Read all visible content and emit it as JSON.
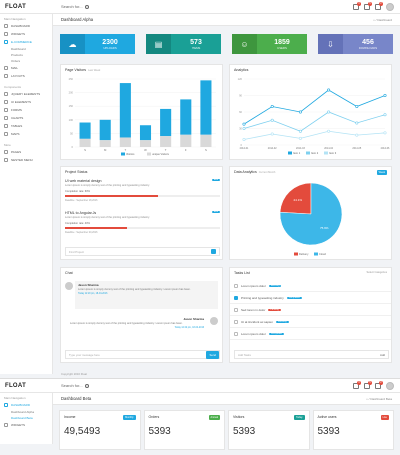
{
  "app": {
    "logo": "FLOAT",
    "search_placeholder": "Search for...",
    "user_initial": ""
  },
  "notifications": [
    {
      "name": "mail-icon",
      "count": "3"
    },
    {
      "name": "bell-icon",
      "count": "5"
    },
    {
      "name": "flag-icon",
      "count": "2"
    }
  ],
  "sidebar": {
    "heading_main": "Main Navigation",
    "items": [
      {
        "label": "DASHBOARD",
        "icon": "home-icon"
      },
      {
        "label": "WIDGETS",
        "icon": "widget-icon"
      },
      {
        "label": "E-COMMERCE",
        "icon": "cart-icon",
        "active": true
      },
      {
        "label": "MAIL",
        "icon": "mail-icon"
      },
      {
        "label": "LAYOUTS",
        "icon": "layout-icon"
      }
    ],
    "subitems": [
      "Dashboard",
      "Products",
      "Orders"
    ],
    "heading_components": "Components",
    "components": [
      {
        "label": "JQUERY ELEMENTS",
        "icon": "jquery-icon"
      },
      {
        "label": "UI ELEMENTS",
        "icon": "ui-icon"
      },
      {
        "label": "FORMS",
        "icon": "form-icon"
      },
      {
        "label": "CHARTS",
        "icon": "chart-icon"
      },
      {
        "label": "TABLES",
        "icon": "table-icon"
      },
      {
        "label": "MAPS",
        "icon": "map-icon"
      }
    ],
    "heading_more": "More",
    "more": [
      {
        "label": "PAGES",
        "icon": "pages-icon"
      },
      {
        "label": "NESTED MENU",
        "icon": "nested-icon"
      }
    ]
  },
  "header": {
    "title": "Dashboard Alpha",
    "breadcrumb": "Dashboard"
  },
  "stats": [
    {
      "value": "2300",
      "label": "Uploads",
      "color": "#1fa8e0",
      "icon": "cloud-icon"
    },
    {
      "value": "573",
      "label": "Items",
      "color": "#1aa096",
      "icon": "clipboard-icon"
    },
    {
      "value": "1859",
      "label": "Users",
      "color": "#4cae4c",
      "icon": "user-icon"
    },
    {
      "value": "456",
      "label": "Downloads",
      "color": "#7886c9",
      "icon": "download-icon"
    }
  ],
  "page_visitors": {
    "title": "Page Visitors",
    "subtitle": "Last Week"
  },
  "analytics": {
    "title": "Analytics"
  },
  "project_status": {
    "title": "Project Status",
    "projects": [
      {
        "name": "UI web material design",
        "desc": "Lorem ipsum is simply dummy text of the printing and typesetting industry.",
        "progress_label": "Completion rate: 60%",
        "progress": 0.6,
        "deadline": "Deadline : September 18,2016",
        "tag": "Edit"
      },
      {
        "name": "HTML to Angular.Js",
        "desc": "Lorem ipsum is simply dummy text of the printing and typesetting industry.",
        "progress_label": "Completion rate: 40%",
        "progress": 0.4,
        "deadline": "Deadline : September 20,2016",
        "tag": "Edit"
      }
    ],
    "search_placeholder": "Find Project"
  },
  "data_analytics": {
    "title": "Data Analytics",
    "subtitle": "Current Month",
    "pill": "Week"
  },
  "chat": {
    "title": "Chat",
    "messages": [
      {
        "name": "Jason Sharma",
        "text": "Lorem ipsum is simply dummy text of the printing and typesetting industry. Lorem ipsum has been.",
        "time": "Today 12:20 pm, 18-04-2016",
        "side": "left"
      },
      {
        "name": "Jason Sharma",
        "text": "Lorem ipsum is simply dummy text of the printing and typesetting industry. Lorem ipsum has been.",
        "time": "Today 12:22 pm, 18-04-2016",
        "side": "right"
      }
    ],
    "input_placeholder": "Type your message here",
    "send_label": "Send"
  },
  "tasks": {
    "title": "Tasks List",
    "list_label": "Select Categories",
    "items": [
      {
        "text": "Lorem ipsum dolor",
        "tag": "Running",
        "tag_color": "#1fa8e0",
        "done": false
      },
      {
        "text": "Printing and typesetting industry",
        "tag": "Completed",
        "tag_color": "#1fa8e0",
        "done": true
      },
      {
        "text": "Sed lorem in dolor",
        "tag": "Pending",
        "tag_color": "#e34b3c",
        "done": false
      },
      {
        "text": "Ut at tincidunt ac sapien",
        "tag": "Running",
        "tag_color": "#1fa8e0",
        "done": false
      },
      {
        "text": "Lorem ipsum dolor",
        "tag": "Completed",
        "tag_color": "#1fa8e0",
        "done": false
      }
    ],
    "add_placeholder": "Add Tasks",
    "add_label": "Add"
  },
  "footer": {
    "text": "Copyright 2016 Float"
  },
  "second": {
    "logo": "FLOAT",
    "search_placeholder": "Search for...",
    "header_title": "Dashboard Beta",
    "breadcrumb": "Dashboard Beta",
    "sidebar_heading": "Main Navigation",
    "sidebar_items": [
      {
        "label": "DASHBOARD",
        "icon": "home-icon",
        "active": true
      }
    ],
    "sidebar_sub": [
      "Dashboard Alpha",
      "Dashboard Beta"
    ],
    "sidebar_more": [
      {
        "label": "WIDGETS",
        "icon": "widget-icon"
      }
    ],
    "cards": [
      {
        "name": "Income",
        "badge": "Monthly",
        "badge_color": "#1fa8e0",
        "value": "49,5493"
      },
      {
        "name": "Orders",
        "badge": "Annual",
        "badge_color": "#4cae4c",
        "value": "5393"
      },
      {
        "name": "Visitors",
        "badge": "Today",
        "badge_color": "#1aa096",
        "value": "5393"
      },
      {
        "name": "Active users",
        "badge": "Live",
        "badge_color": "#e34b3c",
        "value": "5393"
      }
    ]
  },
  "chart_data": [
    {
      "type": "bar",
      "title": "Page Visitors",
      "categories": [
        "S",
        "M",
        "T",
        "W",
        "T",
        "F",
        "S"
      ],
      "series": [
        {
          "name": "Visitors",
          "values": [
            60,
            75,
            200,
            55,
            100,
            130,
            200
          ]
        },
        {
          "name": "unique Visitors",
          "values": [
            30,
            25,
            35,
            25,
            40,
            45,
            45
          ]
        }
      ],
      "colors": [
        "#1fa8e0",
        "#d9d9d9"
      ],
      "ylim": [
        0,
        250
      ]
    },
    {
      "type": "line",
      "title": "Analytics",
      "categories": [
        "2014-01",
        "2014-02",
        "2014-03",
        "2014-04",
        "2014-05",
        "2014-06"
      ],
      "series": [
        {
          "name": "Item 1",
          "values": [
            38,
            70,
            60,
            100,
            70,
            90
          ]
        },
        {
          "name": "Item 2",
          "values": [
            30,
            45,
            25,
            60,
            40,
            55
          ]
        },
        {
          "name": "Item 3",
          "values": [
            10,
            20,
            12,
            25,
            18,
            22
          ]
        }
      ],
      "colors": [
        "#1fa8e0",
        "#7fd0ef",
        "#b3e3f5"
      ],
      "ylim": [
        0,
        120
      ]
    },
    {
      "type": "pie",
      "title": "Data Analytics",
      "series": [
        {
          "name": "Delivery",
          "value": 24.1
        },
        {
          "name": "Cloud",
          "value": 75.9
        }
      ],
      "labels": [
        "24.1%",
        "75.9%"
      ],
      "colors": [
        "#e34b3c",
        "#3db7e8"
      ]
    }
  ]
}
